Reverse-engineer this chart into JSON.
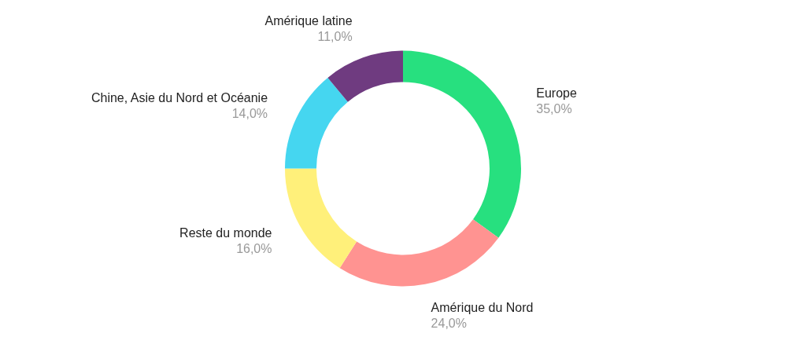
{
  "chart_data": {
    "type": "donut",
    "categories": [
      "Europe",
      "Amérique du Nord",
      "Reste du monde",
      "Chine, Asie du Nord et Océanie",
      "Amérique latine"
    ],
    "values": [
      35,
      24,
      16,
      14,
      11
    ],
    "value_labels": [
      "35,0%",
      "24,0%",
      "16,0%",
      "14,0%",
      "11,0%"
    ],
    "colors": [
      "#27e07f",
      "#ff9391",
      "#fff07a",
      "#45d6f0",
      "#6f3b80"
    ]
  }
}
